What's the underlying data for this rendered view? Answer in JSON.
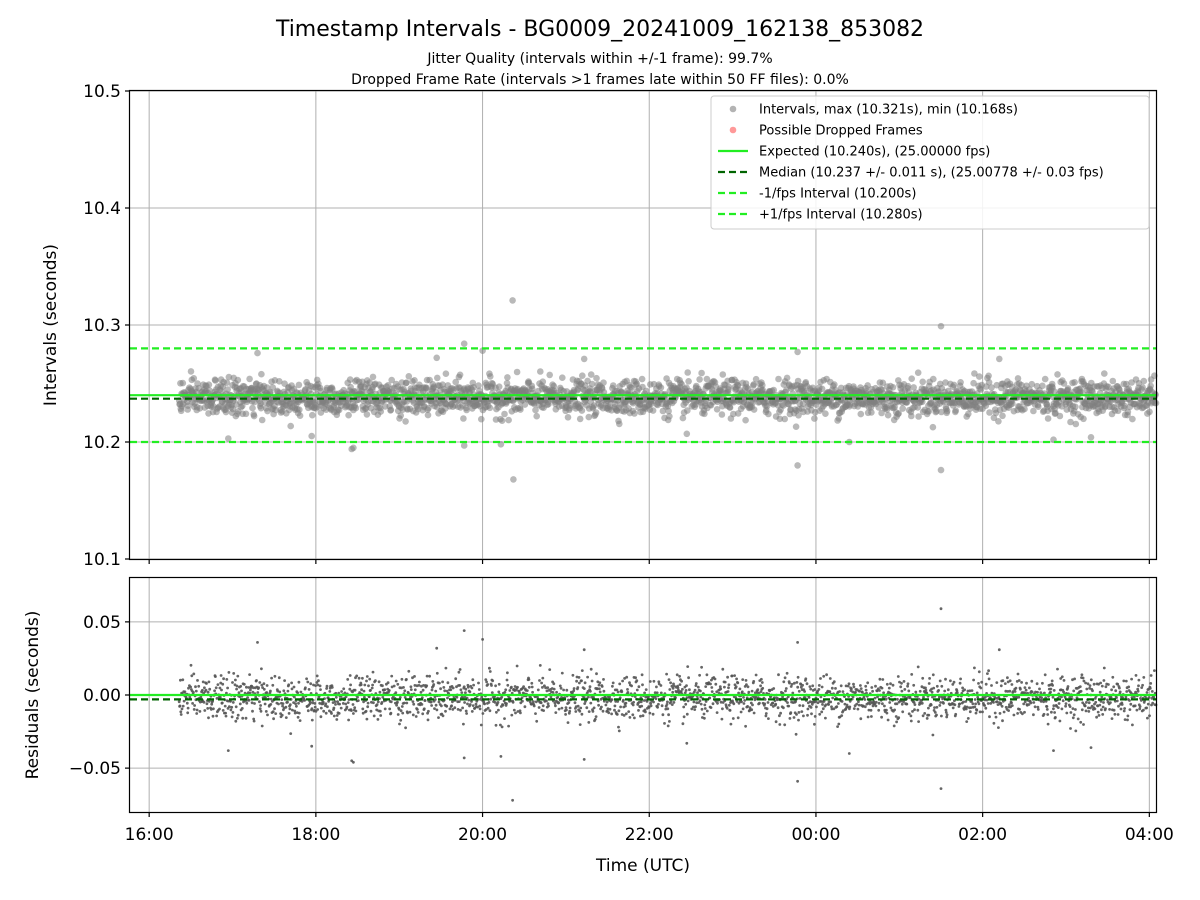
{
  "figure": {
    "title": "Timestamp Intervals - BG0009_20241009_162138_853082",
    "subtitle_line1": "Jitter Quality (intervals within +/-1 frame): 99.7%",
    "subtitle_line2": "Dropped Frame Rate (intervals >1 frames late within 50 FF files): 0.0%"
  },
  "chart_data": [
    {
      "type": "scatter",
      "panel": "intervals",
      "title": "Timestamp Intervals - BG0009_20241009_162138_853082",
      "xlabel": "",
      "ylabel": "Intervals (seconds)",
      "ylim": [
        10.1,
        10.5
      ],
      "yticks": [
        10.1,
        10.2,
        10.3,
        10.4,
        10.5
      ],
      "ytick_labels": [
        "10.1",
        "10.2",
        "10.3",
        "10.4",
        "10.5"
      ],
      "x_is_time_hours": true,
      "xlim_hours": [
        15.77,
        28.08
      ],
      "xticks_hours": [
        16,
        18,
        20,
        22,
        24,
        26,
        28
      ],
      "grid": true,
      "legend_placement": "upper-right",
      "legend": [
        {
          "label": "Intervals, max (10.321s), min (10.168s)",
          "kind": "point",
          "color": "#808080"
        },
        {
          "label": "Possible Dropped Frames",
          "kind": "point",
          "color": "#ff5555"
        },
        {
          "label": "Expected (10.240s), (25.00000 fps)",
          "kind": "solid",
          "color": "#22ee22"
        },
        {
          "label": "Median (10.237 +/- 0.011 s), (25.00778 +/- 0.03 fps)",
          "kind": "dashed",
          "color": "#006400"
        },
        {
          "label": "-1/fps Interval (10.200s)",
          "kind": "dashed",
          "color": "#22ee22"
        },
        {
          "label": "+1/fps Interval (10.280s)",
          "kind": "dashed",
          "color": "#22ee22"
        }
      ],
      "reference_lines": [
        {
          "name": "Expected",
          "y": 10.24,
          "style": "solid",
          "color": "#22ee22"
        },
        {
          "name": "Median",
          "y": 10.237,
          "style": "dashed",
          "color": "#006400"
        },
        {
          "name": "-1/fps Interval",
          "y": 10.2,
          "style": "dashed",
          "color": "#22ee22"
        },
        {
          "name": "+1/fps Interval",
          "y": 10.28,
          "style": "dashed",
          "color": "#22ee22"
        }
      ],
      "series": [
        {
          "name": "Intervals",
          "color": "#808080",
          "x_start_hours": 16.36,
          "x_end_hours": 28.08,
          "center": 10.238,
          "typical_spread": 0.011,
          "points": [
            {
              "x": 17.3,
              "y": 10.276
            },
            {
              "x": 18.43,
              "y": 10.194
            },
            {
              "x": 18.45,
              "y": 10.195
            },
            {
              "x": 19.45,
              "y": 10.272
            },
            {
              "x": 19.78,
              "y": 10.284
            },
            {
              "x": 19.78,
              "y": 10.197
            },
            {
              "x": 20.0,
              "y": 10.278
            },
            {
              "x": 20.22,
              "y": 10.198
            },
            {
              "x": 20.36,
              "y": 10.321
            },
            {
              "x": 20.37,
              "y": 10.168
            },
            {
              "x": 21.22,
              "y": 10.271
            },
            {
              "x": 23.78,
              "y": 10.277
            },
            {
              "x": 23.78,
              "y": 10.18
            },
            {
              "x": 24.4,
              "y": 10.2
            },
            {
              "x": 25.5,
              "y": 10.299
            },
            {
              "x": 25.5,
              "y": 10.176
            },
            {
              "x": 26.2,
              "y": 10.271
            },
            {
              "x": 26.85,
              "y": 10.202
            },
            {
              "x": 16.95,
              "y": 10.203
            },
            {
              "x": 17.95,
              "y": 10.205
            },
            {
              "x": 22.45,
              "y": 10.207
            },
            {
              "x": 27.3,
              "y": 10.204
            }
          ]
        }
      ],
      "dropped_frames": []
    },
    {
      "type": "scatter",
      "panel": "residuals",
      "xlabel": "Time (UTC)",
      "ylabel": "Residuals (seconds)",
      "ylim": [
        -0.08,
        0.08
      ],
      "yticks": [
        0.05,
        0.0,
        -0.05
      ],
      "ytick_labels": [
        "0.05",
        "0.00",
        "−0.05"
      ],
      "xlim_hours": [
        15.77,
        28.08
      ],
      "xticks_hours": [
        16,
        18,
        20,
        22,
        24,
        26,
        28
      ],
      "xtick_labels": [
        "16:00",
        "18:00",
        "20:00",
        "22:00",
        "00:00",
        "02:00",
        "04:00"
      ],
      "grid": true,
      "reference_lines": [
        {
          "name": "Expected",
          "y": 0.0,
          "style": "solid",
          "color": "#22ee22"
        },
        {
          "name": "Median",
          "y": -0.003,
          "style": "dashed",
          "color": "#006400"
        }
      ],
      "series": [
        {
          "name": "Residuals",
          "color": "#555555",
          "x_start_hours": 16.36,
          "x_end_hours": 28.08,
          "center": -0.002,
          "typical_spread": 0.011,
          "points": [
            {
              "x": 17.3,
              "y": 0.036
            },
            {
              "x": 18.43,
              "y": -0.045
            },
            {
              "x": 18.45,
              "y": -0.046
            },
            {
              "x": 19.45,
              "y": 0.032
            },
            {
              "x": 19.78,
              "y": 0.044
            },
            {
              "x": 19.78,
              "y": -0.043
            },
            {
              "x": 20.0,
              "y": 0.038
            },
            {
              "x": 20.22,
              "y": -0.042
            },
            {
              "x": 20.36,
              "y": -0.072
            },
            {
              "x": 21.22,
              "y": 0.031
            },
            {
              "x": 21.22,
              "y": -0.044
            },
            {
              "x": 23.78,
              "y": 0.036
            },
            {
              "x": 23.78,
              "y": -0.059
            },
            {
              "x": 24.4,
              "y": -0.04
            },
            {
              "x": 25.5,
              "y": 0.059
            },
            {
              "x": 25.5,
              "y": -0.064
            },
            {
              "x": 26.2,
              "y": 0.031
            },
            {
              "x": 26.85,
              "y": -0.038
            },
            {
              "x": 16.95,
              "y": -0.038
            },
            {
              "x": 17.95,
              "y": -0.035
            },
            {
              "x": 22.45,
              "y": -0.033
            },
            {
              "x": 27.3,
              "y": -0.036
            }
          ]
        }
      ]
    }
  ]
}
